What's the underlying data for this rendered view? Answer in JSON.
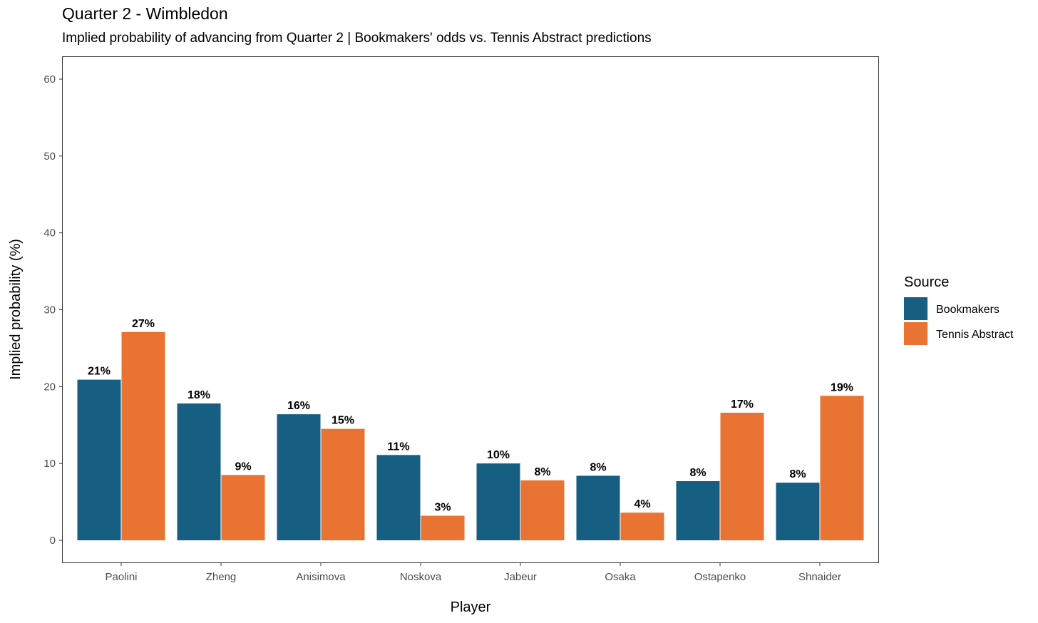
{
  "chart_data": {
    "type": "bar",
    "title": "Quarter 2 - Wimbledon",
    "subtitle": "Implied probability of advancing from Quarter 2 | Bookmakers' odds vs. Tennis Abstract predictions",
    "xlabel": "Player",
    "ylabel": "Implied probability (%)",
    "ylim": [
      0,
      60
    ],
    "yticks": [
      "0",
      "10",
      "20",
      "30",
      "40",
      "50",
      "60"
    ],
    "grid": false,
    "legend": {
      "title": "Source",
      "placement": "right"
    },
    "categories": [
      "Paolini",
      "Zheng",
      "Anisimova",
      "Noskova",
      "Jabeur",
      "Osaka",
      "Ostapenko",
      "Shnaider"
    ],
    "series": [
      {
        "name": "Bookmakers",
        "color": "#175f82",
        "values": [
          20.9,
          17.8,
          16.4,
          11.1,
          10.0,
          8.4,
          7.7,
          7.5
        ],
        "labels": [
          "21%",
          "18%",
          "16%",
          "11%",
          "10%",
          "8%",
          "8%",
          "8%"
        ]
      },
      {
        "name": "Tennis Abstract",
        "color": "#e87332",
        "values": [
          27.1,
          8.5,
          14.5,
          3.2,
          7.8,
          3.6,
          16.6,
          18.8
        ],
        "labels": [
          "27%",
          "9%",
          "15%",
          "3%",
          "8%",
          "4%",
          "17%",
          "19%"
        ]
      }
    ]
  }
}
